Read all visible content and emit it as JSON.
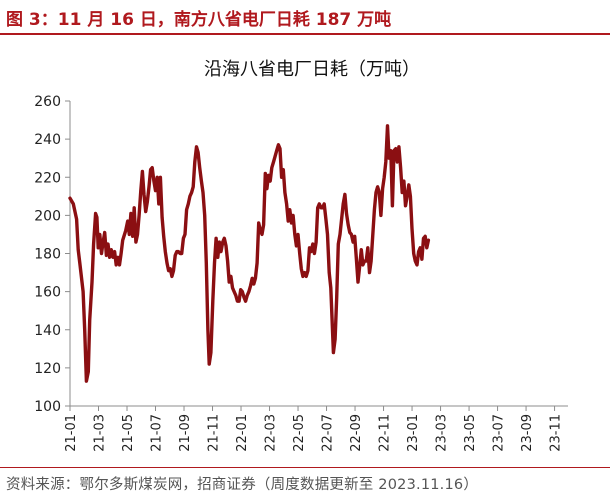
{
  "figure": {
    "title": "图 3：11 月 16 日，南方八省电厂日耗 187 万吨",
    "source": "资料来源：鄂尔多斯煤炭网，招商证券（周度数据更新至 2023.11.16）"
  },
  "colors": {
    "accent": "#b0191e",
    "series": "#8b0f12",
    "axis": "#8c8c8c"
  },
  "chart_data": {
    "type": "line",
    "title": "沿海八省电厂日耗（万吨）",
    "xlabel": "",
    "ylabel": "",
    "ylim": [
      100,
      260
    ],
    "yticks": [
      100,
      120,
      140,
      160,
      180,
      200,
      220,
      240,
      260
    ],
    "xticks": [
      "21-01",
      "21-03",
      "21-05",
      "21-07",
      "21-09",
      "21-11",
      "22-01",
      "22-03",
      "22-05",
      "22-07",
      "22-09",
      "22-11",
      "23-01",
      "23-03",
      "23-05",
      "23-07",
      "23-09",
      "23-11"
    ],
    "xlim_weeks": [
      0,
      152
    ],
    "grid": false,
    "legend": "none",
    "series": [
      {
        "name": "",
        "points": [
          [
            0,
            209
          ],
          [
            1,
            206
          ],
          [
            2,
            198
          ],
          [
            2.5,
            182
          ],
          [
            3,
            175
          ],
          [
            4,
            160
          ],
          [
            4.5,
            140
          ],
          [
            5,
            113
          ],
          [
            5.6,
            118
          ],
          [
            6,
            145
          ],
          [
            6.7,
            165
          ],
          [
            7.2,
            185
          ],
          [
            7.8,
            201
          ],
          [
            8.2,
            199
          ],
          [
            8.6,
            183
          ],
          [
            9.1,
            190
          ],
          [
            9.6,
            180
          ],
          [
            10.1,
            186
          ],
          [
            10.6,
            191
          ],
          [
            11.1,
            179
          ],
          [
            11.6,
            185
          ],
          [
            12.1,
            178
          ],
          [
            12.6,
            182
          ],
          [
            13.1,
            178
          ],
          [
            13.6,
            181
          ],
          [
            14.1,
            174
          ],
          [
            14.6,
            178
          ],
          [
            15.1,
            174
          ],
          [
            15.6,
            180
          ],
          [
            16.1,
            187
          ],
          [
            17,
            192
          ],
          [
            17.6,
            197
          ],
          [
            18.1,
            190
          ],
          [
            18.6,
            201
          ],
          [
            19.1,
            189
          ],
          [
            19.6,
            204
          ],
          [
            20.1,
            186
          ],
          [
            20.6,
            190
          ],
          [
            21.1,
            200
          ],
          [
            21.6,
            213
          ],
          [
            22.1,
            223
          ],
          [
            22.6,
            211
          ],
          [
            23.1,
            202
          ],
          [
            23.6,
            207
          ],
          [
            24.1,
            215
          ],
          [
            24.6,
            224
          ],
          [
            25.1,
            225
          ],
          [
            25.6,
            218
          ],
          [
            26.1,
            213
          ],
          [
            26.6,
            220
          ],
          [
            27.1,
            206
          ],
          [
            27.6,
            220
          ],
          [
            28.1,
            199
          ],
          [
            28.6,
            189
          ],
          [
            29.1,
            181
          ],
          [
            29.6,
            175
          ],
          [
            30.1,
            171
          ],
          [
            30.6,
            172
          ],
          [
            31.1,
            168
          ],
          [
            31.6,
            171
          ],
          [
            32.1,
            179
          ],
          [
            32.6,
            181
          ],
          [
            33.1,
            181
          ],
          [
            33.6,
            180
          ],
          [
            34.1,
            180
          ],
          [
            34.6,
            188
          ],
          [
            35.1,
            190
          ],
          [
            35.6,
            203
          ],
          [
            36.1,
            206
          ],
          [
            36.6,
            210
          ],
          [
            37.1,
            212
          ],
          [
            37.6,
            215
          ],
          [
            38.1,
            228
          ],
          [
            38.6,
            236
          ],
          [
            39.1,
            233
          ],
          [
            39.6,
            225
          ],
          [
            40.1,
            218
          ],
          [
            40.6,
            212
          ],
          [
            41.1,
            200
          ],
          [
            41.6,
            175
          ],
          [
            42.1,
            140
          ],
          [
            42.5,
            122
          ],
          [
            43,
            128
          ],
          [
            43.6,
            155
          ],
          [
            44.1,
            175
          ],
          [
            44.6,
            188
          ],
          [
            45.1,
            178
          ],
          [
            45.6,
            186
          ],
          [
            46.1,
            181
          ],
          [
            46.6,
            186
          ],
          [
            47.1,
            188
          ],
          [
            47.6,
            184
          ],
          [
            48.1,
            176
          ],
          [
            48.6,
            165
          ],
          [
            49.1,
            168
          ],
          [
            49.6,
            162
          ],
          [
            50.1,
            160
          ],
          [
            50.6,
            158
          ],
          [
            51.1,
            155
          ],
          [
            51.6,
            155
          ],
          [
            52.1,
            161
          ],
          [
            52.6,
            160
          ],
          [
            53.1,
            157
          ],
          [
            53.6,
            155
          ],
          [
            54.1,
            158
          ],
          [
            54.6,
            160
          ],
          [
            55.1,
            163
          ],
          [
            55.6,
            167
          ],
          [
            56.1,
            164
          ],
          [
            56.6,
            167
          ],
          [
            57.1,
            175
          ],
          [
            57.6,
            196
          ],
          [
            58.1,
            192
          ],
          [
            58.6,
            190
          ],
          [
            59.1,
            195
          ],
          [
            59.6,
            222
          ],
          [
            60.1,
            214
          ],
          [
            60.6,
            221
          ],
          [
            61.1,
            218
          ],
          [
            61.6,
            225
          ],
          [
            62.1,
            228
          ],
          [
            62.6,
            231
          ],
          [
            63.1,
            234
          ],
          [
            63.6,
            237
          ],
          [
            64.1,
            235
          ],
          [
            64.6,
            220
          ],
          [
            65.1,
            224
          ],
          [
            65.6,
            212
          ],
          [
            66.1,
            206
          ],
          [
            66.6,
            197
          ],
          [
            67.1,
            203
          ],
          [
            67.6,
            196
          ],
          [
            68.1,
            200
          ],
          [
            68.6,
            190
          ],
          [
            69.1,
            184
          ],
          [
            69.6,
            190
          ],
          [
            70.1,
            180
          ],
          [
            70.6,
            172
          ],
          [
            71.1,
            168
          ],
          [
            71.6,
            170
          ],
          [
            72.1,
            168
          ],
          [
            72.6,
            171
          ],
          [
            73.1,
            183
          ],
          [
            73.6,
            181
          ],
          [
            74.1,
            185
          ],
          [
            74.6,
            180
          ],
          [
            75.1,
            186
          ],
          [
            75.6,
            204
          ],
          [
            76.1,
            206
          ],
          [
            76.6,
            204
          ],
          [
            77.1,
            204
          ],
          [
            77.6,
            206
          ],
          [
            78.1,
            198
          ],
          [
            78.6,
            190
          ],
          [
            79.1,
            170
          ],
          [
            79.6,
            162
          ],
          [
            80,
            145
          ],
          [
            80.4,
            128
          ],
          [
            80.9,
            135
          ],
          [
            81.4,
            157
          ],
          [
            81.9,
            185
          ],
          [
            82.4,
            190
          ],
          [
            82.9,
            198
          ],
          [
            83.4,
            206
          ],
          [
            83.9,
            211
          ],
          [
            84.4,
            201
          ],
          [
            84.9,
            195
          ],
          [
            85.4,
            191
          ],
          [
            85.9,
            190
          ],
          [
            86.4,
            186
          ],
          [
            86.9,
            189
          ],
          [
            87.4,
            177
          ],
          [
            87.9,
            165
          ],
          [
            88.4,
            173
          ],
          [
            88.9,
            182
          ],
          [
            89.4,
            174
          ],
          [
            89.9,
            176
          ],
          [
            90.4,
            176
          ],
          [
            90.9,
            183
          ],
          [
            91.4,
            170
          ],
          [
            91.9,
            176
          ],
          [
            92.4,
            189
          ],
          [
            92.9,
            203
          ],
          [
            93.4,
            212
          ],
          [
            93.9,
            215
          ],
          [
            94.4,
            212
          ],
          [
            94.9,
            200
          ],
          [
            95.4,
            214
          ],
          [
            95.9,
            220
          ],
          [
            96.4,
            228
          ],
          [
            96.9,
            247
          ],
          [
            97.4,
            230
          ],
          [
            97.9,
            234
          ],
          [
            98.4,
            205
          ],
          [
            98.9,
            234
          ],
          [
            99.4,
            235
          ],
          [
            99.9,
            228
          ],
          [
            100.4,
            236
          ],
          [
            100.9,
            225
          ],
          [
            101.4,
            212
          ],
          [
            101.9,
            218
          ],
          [
            102.4,
            205
          ],
          [
            102.9,
            210
          ],
          [
            103.4,
            216
          ],
          [
            103.9,
            210
          ],
          [
            104.4,
            193
          ],
          [
            104.9,
            180
          ],
          [
            105.4,
            176
          ],
          [
            105.9,
            174
          ],
          [
            106.4,
            181
          ],
          [
            106.9,
            183
          ],
          [
            107.4,
            177
          ],
          [
            107.9,
            188
          ],
          [
            108.4,
            189
          ],
          [
            108.9,
            183
          ],
          [
            109.4,
            187
          ]
        ]
      }
    ]
  }
}
